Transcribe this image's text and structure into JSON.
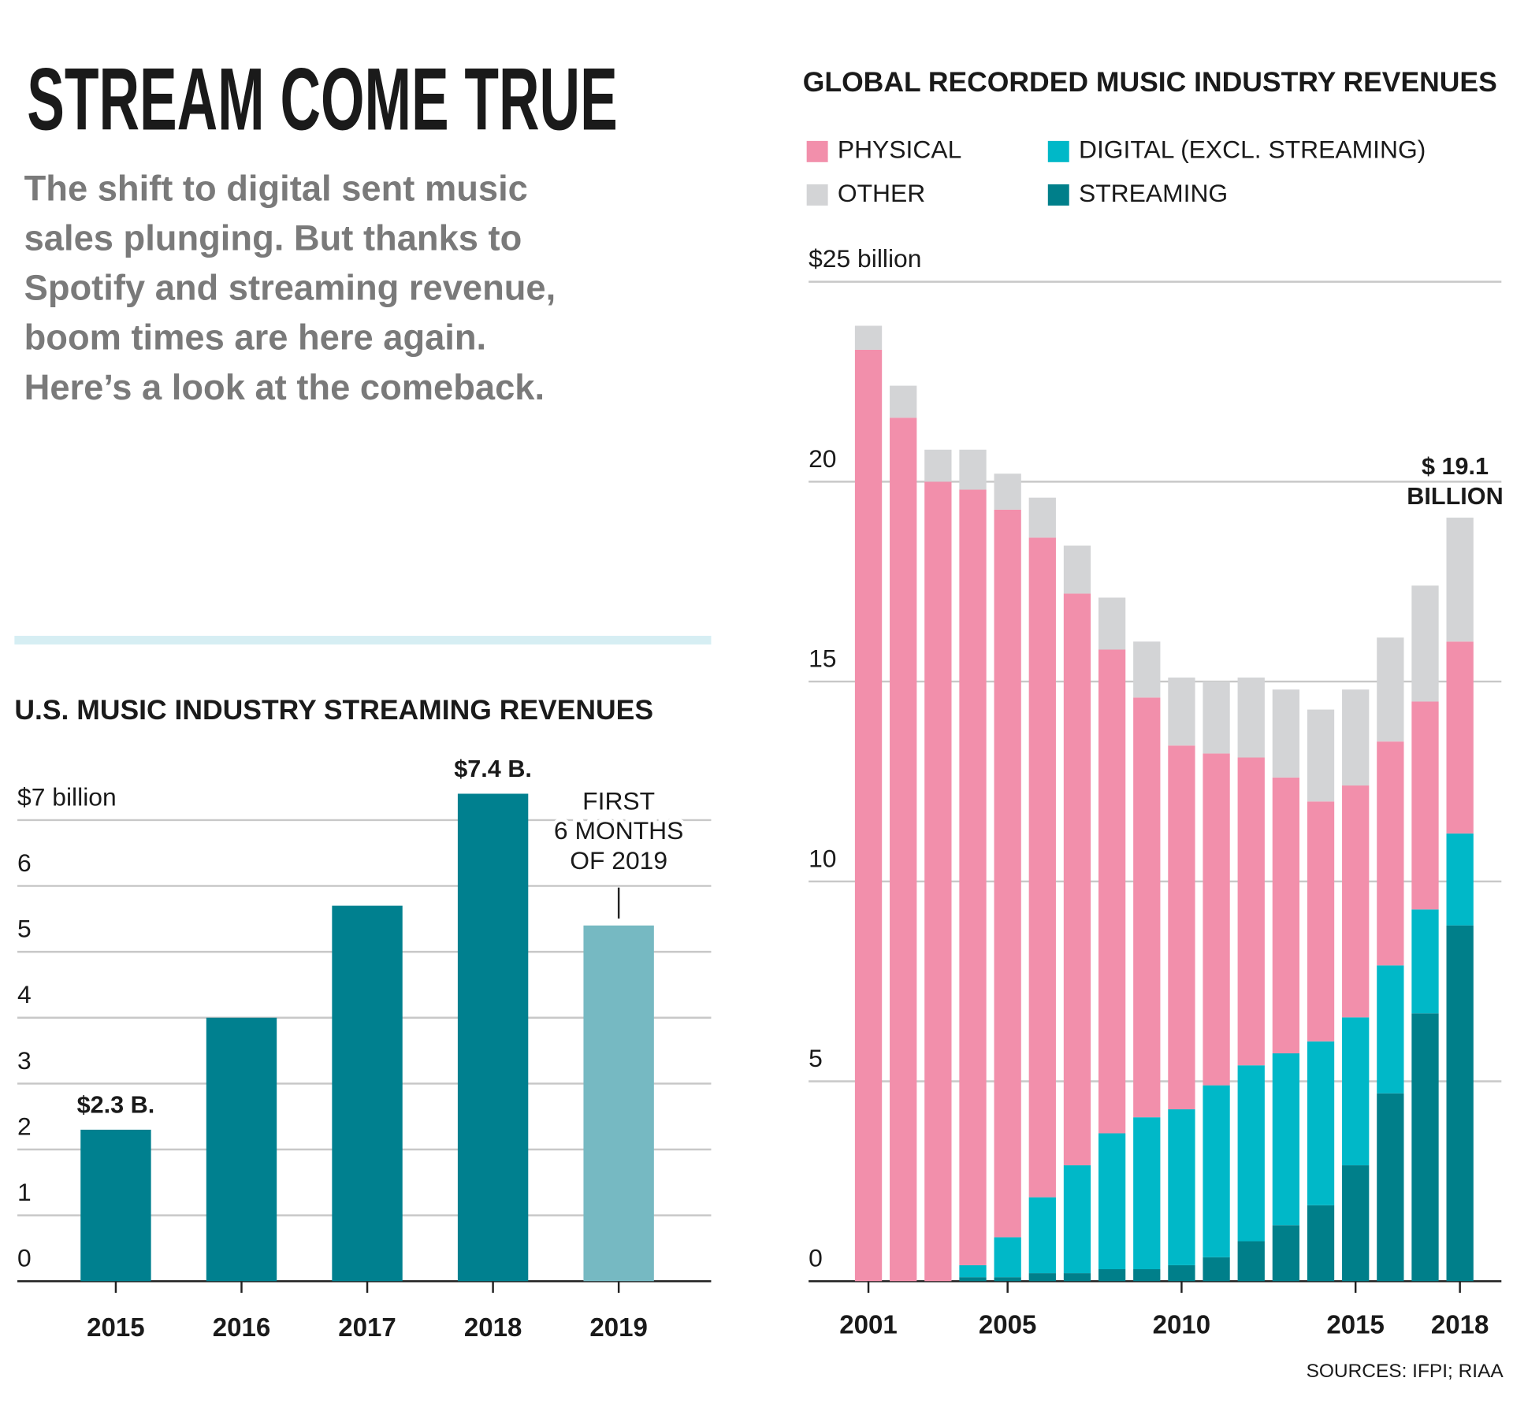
{
  "header": {
    "title": "STREAM COME TRUE",
    "subtitle": [
      "The shift to digital sent music",
      "sales plunging. But thanks to",
      "Spotify and streaming revenue,",
      "boom times are here again.",
      "Here’s a look at the comeback."
    ]
  },
  "chart_data": [
    {
      "type": "bar",
      "title": "U.S. MUSIC INDUSTRY STREAMING REVENUES",
      "categories": [
        "2015",
        "2016",
        "2017",
        "2018",
        "2019"
      ],
      "values": [
        2.3,
        4.0,
        5.7,
        7.4,
        5.4
      ],
      "value_labels": [
        "$2.3 B.",
        null,
        null,
        "$7.4 B.",
        null
      ],
      "colors": [
        "#00808f",
        "#00808f",
        "#00808f",
        "#00808f",
        "#76b9c2"
      ],
      "ylim": [
        0,
        7
      ],
      "yticks": [
        0,
        1,
        2,
        3,
        4,
        5,
        6,
        {
          "value": 7,
          "label": "$7 billion"
        }
      ],
      "grid": true,
      "annotation": [
        "FIRST",
        "6 MONTHS",
        "OF 2019"
      ]
    },
    {
      "type": "stacked-bar",
      "title": "GLOBAL RECORDED MUSIC INDUSTRY REVENUES",
      "categories": [
        "2001",
        null,
        null,
        null,
        "2005",
        null,
        null,
        null,
        null,
        "2010",
        null,
        null,
        null,
        null,
        "2015",
        null,
        null,
        "2018"
      ],
      "series": [
        {
          "name": "STREAMING",
          "color": "#007f8a",
          "values": [
            0,
            0,
            0,
            0.1,
            0.1,
            0.2,
            0.2,
            0.3,
            0.3,
            0.4,
            0.6,
            1.0,
            1.4,
            1.9,
            2.9,
            4.7,
            6.7,
            8.9
          ]
        },
        {
          "name": "DIGITAL (EXCL. STREAMING)",
          "color": "#00b8c8",
          "values": [
            0,
            0,
            0,
            0.3,
            1.0,
            1.9,
            2.7,
            3.4,
            3.8,
            3.9,
            4.3,
            4.4,
            4.3,
            4.1,
            3.7,
            3.2,
            2.6,
            2.3
          ]
        },
        {
          "name": "PHYSICAL",
          "color": "#f28fab",
          "values": [
            23.3,
            21.6,
            20.0,
            19.4,
            18.2,
            16.5,
            14.3,
            12.1,
            10.5,
            9.1,
            8.3,
            7.7,
            6.9,
            6.0,
            5.8,
            5.6,
            5.2,
            4.8
          ]
        },
        {
          "name": "OTHER",
          "color": "#d3d4d6",
          "values": [
            0.6,
            0.8,
            0.8,
            1.0,
            0.9,
            1.0,
            1.2,
            1.3,
            1.4,
            1.7,
            1.8,
            2.0,
            2.2,
            2.3,
            2.4,
            2.6,
            2.9,
            3.1
          ]
        }
      ],
      "ylim": [
        0,
        25
      ],
      "yticks": [
        0,
        5,
        10,
        15,
        20,
        {
          "value": 25,
          "label": "$25 billion"
        }
      ],
      "grid": true,
      "annotation": [
        "$ 19.1",
        "BILLION"
      ],
      "source": "SOURCES: IFPI; RIAA"
    }
  ]
}
